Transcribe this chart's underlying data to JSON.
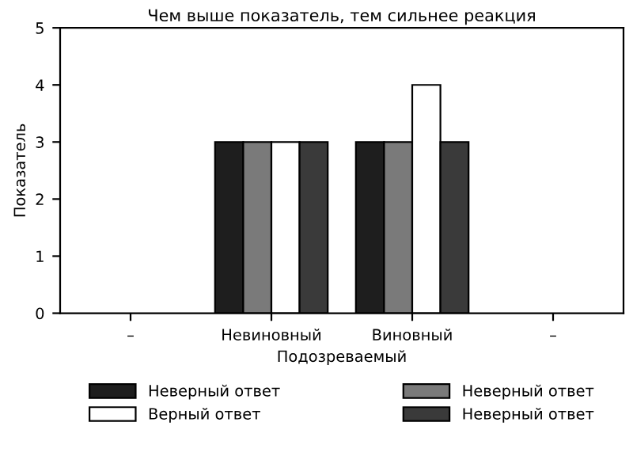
{
  "chart_data": {
    "type": "bar",
    "title": "Чем выше показатель, тем сильнее реакция",
    "xlabel": "Подозреваемый",
    "ylabel": "Показатель",
    "categories": [
      "–",
      "Невиновный",
      "Виновный",
      "–"
    ],
    "series": [
      {
        "name": "Неверный ответ",
        "color": "#1e1e1e",
        "values": [
          null,
          3,
          3,
          null
        ]
      },
      {
        "name": "Неверный ответ",
        "color": "#7a7a7a",
        "values": [
          null,
          3,
          3,
          null
        ]
      },
      {
        "name": "Верный ответ",
        "color": "#ffffff",
        "values": [
          null,
          3,
          4,
          null
        ]
      },
      {
        "name": "Неверный ответ",
        "color": "#3a3a3a",
        "values": [
          null,
          3,
          3,
          null
        ]
      }
    ],
    "ylim": [
      0,
      5
    ],
    "yticks": [
      0,
      1,
      2,
      3,
      4,
      5
    ],
    "grid": false,
    "legend": "bottom"
  }
}
